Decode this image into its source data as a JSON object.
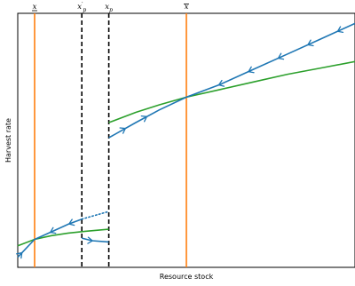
{
  "chart_data": {
    "type": "line",
    "title": "",
    "xlabel": "Resource stock",
    "ylabel": "Harvest rate",
    "xlim": [
      0,
      1
    ],
    "ylim": [
      0,
      1
    ],
    "grid": false,
    "ticks_numeric": false,
    "vertical_markers": [
      {
        "label": "x̲",
        "label_parts": {
          "base": "x",
          "accent": "underline"
        },
        "x": 0.05,
        "color": "#ff7f0e",
        "style": "solid"
      },
      {
        "label": "x′p",
        "label_parts": {
          "base": "x",
          "prime": "′",
          "sub": "p"
        },
        "x": 0.19,
        "color": "#000000",
        "style": "dashed"
      },
      {
        "label": "xp",
        "label_parts": {
          "base": "x",
          "sub": "p"
        },
        "x": 0.27,
        "color": "#000000",
        "style": "dashed"
      },
      {
        "label": "x̄",
        "label_parts": {
          "base": "x",
          "accent": "overline"
        },
        "x": 0.5,
        "color": "#ff7f0e",
        "style": "solid"
      }
    ],
    "series": [
      {
        "color": "#2ca02c",
        "style": "solid",
        "points": [
          [
            0.0,
            0.085
          ],
          [
            0.05,
            0.11
          ],
          [
            0.1,
            0.125
          ],
          [
            0.15,
            0.135
          ],
          [
            0.2,
            0.142
          ],
          [
            0.27,
            0.15
          ]
        ]
      },
      {
        "color": "#2ca02c",
        "style": "solid",
        "points": [
          [
            0.27,
            0.57
          ],
          [
            0.35,
            0.61
          ],
          [
            0.42,
            0.64
          ],
          [
            0.5,
            0.67
          ],
          [
            0.6,
            0.7
          ],
          [
            0.7,
            0.73
          ],
          [
            0.8,
            0.76
          ],
          [
            0.9,
            0.785
          ],
          [
            1.0,
            0.81
          ]
        ]
      },
      {
        "color": "#1f77b4",
        "style": "solid",
        "arrows": "toward-equilibrium",
        "points": [
          [
            0.0,
            0.04
          ],
          [
            0.05,
            0.11
          ],
          [
            0.1,
            0.14
          ],
          [
            0.15,
            0.17
          ],
          [
            0.19,
            0.19
          ]
        ]
      },
      {
        "color": "#1f77b4",
        "style": "dotted",
        "points": [
          [
            0.19,
            0.19
          ],
          [
            0.23,
            0.205
          ],
          [
            0.27,
            0.22
          ]
        ]
      },
      {
        "color": "#1f77b4",
        "style": "solid",
        "arrows": "forward",
        "points": [
          [
            0.19,
            0.115
          ],
          [
            0.22,
            0.105
          ],
          [
            0.27,
            0.1
          ]
        ]
      },
      {
        "color": "#1f77b4",
        "style": "solid",
        "arrows": "toward-equilibrium",
        "points": [
          [
            0.27,
            0.51
          ],
          [
            0.35,
            0.57
          ],
          [
            0.42,
            0.62
          ],
          [
            0.5,
            0.67
          ],
          [
            0.6,
            0.72
          ],
          [
            0.7,
            0.78
          ],
          [
            0.8,
            0.84
          ],
          [
            0.9,
            0.9
          ],
          [
            1.0,
            0.96
          ]
        ]
      }
    ]
  }
}
